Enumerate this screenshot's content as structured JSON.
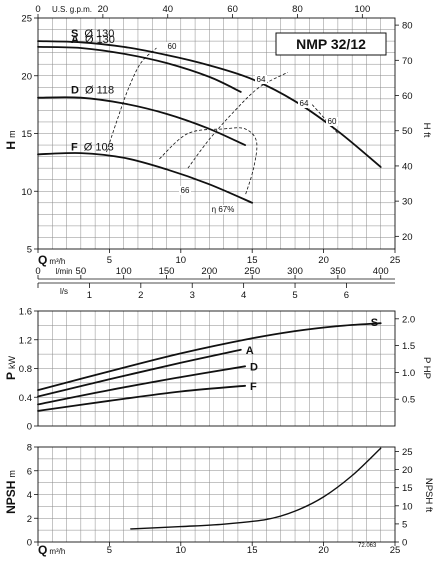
{
  "model": "NMP 32/12",
  "ref_code": "72.063",
  "axes": {
    "h_m": {
      "label_main": "H",
      "label_unit": "m",
      "ticks": [
        "5",
        "10",
        "15",
        "20",
        "25"
      ]
    },
    "h_ft": {
      "label": "H ft",
      "ticks": [
        "20",
        "30",
        "40",
        "50",
        "60",
        "70",
        "80"
      ]
    },
    "q_m3h": {
      "label_main": "Q",
      "label_unit": "m³/h",
      "ticks": [
        "0",
        "5",
        "10",
        "15",
        "20",
        "25"
      ]
    },
    "q_usgpm": {
      "label": "U.S. g.p.m.",
      "ticks": [
        "0",
        "20",
        "40",
        "60",
        "80",
        "100"
      ]
    },
    "q_lmin": {
      "label": "l/min",
      "ticks": [
        "0",
        "50",
        "100",
        "150",
        "200",
        "250",
        "300",
        "350",
        "400"
      ]
    },
    "q_ls": {
      "label": "l/s",
      "ticks": [
        "0",
        "1",
        "2",
        "3",
        "4",
        "5",
        "6"
      ]
    },
    "p_kw": {
      "label_main": "P",
      "label_unit": "kW",
      "ticks": [
        "0",
        "0.4",
        "0.8",
        "1.2",
        "1.6"
      ]
    },
    "p_hp": {
      "label": "P HP",
      "ticks": [
        "0.5",
        "1.0",
        "1.5",
        "2.0"
      ]
    },
    "npsh_m": {
      "label_main": "NPSH",
      "label_unit": "m",
      "ticks": [
        "0",
        "2",
        "4",
        "6",
        "8"
      ]
    },
    "npsh_ft": {
      "label": "NPSH ft",
      "ticks": [
        "0",
        "5",
        "10",
        "15",
        "20",
        "25"
      ]
    },
    "q_bottom": {
      "label_main": "Q",
      "label_unit": "m³/h",
      "ticks": [
        "0",
        "5",
        "10",
        "15",
        "20",
        "25"
      ]
    }
  },
  "chart_data": [
    {
      "type": "line",
      "name": "head",
      "xlabel": "Q m³/h",
      "ylabel": "H m",
      "xlim": [
        0,
        25
      ],
      "ylim": [
        5,
        25
      ],
      "grid": true,
      "series": [
        {
          "name": "S",
          "label": "Ø 130",
          "x": [
            0,
            3,
            6,
            9,
            12,
            15,
            18,
            21,
            24
          ],
          "y": [
            23.0,
            22.9,
            22.5,
            21.8,
            20.9,
            19.7,
            17.8,
            15.2,
            12.1
          ]
        },
        {
          "name": "A",
          "label": "Ø 130",
          "x": [
            0,
            3,
            6,
            9,
            12,
            14.2
          ],
          "y": [
            22.5,
            22.4,
            21.9,
            21.1,
            19.9,
            18.6
          ]
        },
        {
          "name": "D",
          "label": "Ø 118",
          "x": [
            0,
            3,
            6,
            9,
            12,
            14.5
          ],
          "y": [
            18.1,
            18.1,
            17.6,
            16.7,
            15.4,
            14.0
          ]
        },
        {
          "name": "F",
          "label": "Ø 103",
          "x": [
            0,
            3,
            6,
            9,
            12,
            15
          ],
          "y": [
            13.2,
            13.3,
            12.9,
            11.9,
            10.6,
            9.0
          ]
        }
      ],
      "efficiency_labels": [
        "60",
        "64",
        "64",
        "60",
        "66",
        "η 67%"
      ],
      "efficiency_contours": [
        {
          "x": [
            4.8,
            5.5,
            6.3,
            7.2,
            8.3
          ],
          "y": [
            13.4,
            16.0,
            18.8,
            21.1,
            22.4
          ]
        },
        {
          "x": [
            10.5,
            12.0,
            13.8,
            15.5,
            17.5
          ],
          "y": [
            12.0,
            14.5,
            17.0,
            19.0,
            20.3
          ]
        },
        {
          "x": [
            8.5,
            10.5,
            13.0,
            14.5,
            15.3,
            15.1,
            14.5
          ],
          "y": [
            12.8,
            15.0,
            15.4,
            15.4,
            14.3,
            12.0,
            9.6
          ]
        },
        {
          "x": [
            19.2,
            21.0
          ],
          "y": [
            17.5,
            15.0
          ]
        }
      ]
    },
    {
      "type": "line",
      "name": "power",
      "xlabel": "Q m³/h",
      "ylabel": "P kW",
      "xlim": [
        0,
        25
      ],
      "ylim": [
        0,
        1.6
      ],
      "grid": true,
      "series": [
        {
          "name": "S",
          "x": [
            0,
            5,
            10,
            15,
            18,
            21,
            24
          ],
          "y": [
            0.5,
            0.76,
            1.01,
            1.22,
            1.32,
            1.39,
            1.43
          ]
        },
        {
          "name": "A",
          "x": [
            0,
            5,
            10,
            14.2
          ],
          "y": [
            0.41,
            0.65,
            0.88,
            1.06
          ]
        },
        {
          "name": "D",
          "x": [
            0,
            5,
            10,
            14.5
          ],
          "y": [
            0.3,
            0.5,
            0.68,
            0.83
          ]
        },
        {
          "name": "F",
          "x": [
            0,
            5,
            10,
            14.5
          ],
          "y": [
            0.21,
            0.35,
            0.48,
            0.56
          ]
        }
      ]
    },
    {
      "type": "line",
      "name": "npsh",
      "xlabel": "Q m³/h",
      "ylabel": "NPSH m",
      "xlim": [
        0,
        25
      ],
      "ylim": [
        0,
        8
      ],
      "grid": true,
      "series": [
        {
          "name": "NPSH",
          "x": [
            6.5,
            10,
            13,
            16,
            18,
            20,
            22,
            24
          ],
          "y": [
            1.1,
            1.3,
            1.5,
            1.9,
            2.6,
            3.8,
            5.6,
            7.9
          ]
        }
      ]
    }
  ]
}
